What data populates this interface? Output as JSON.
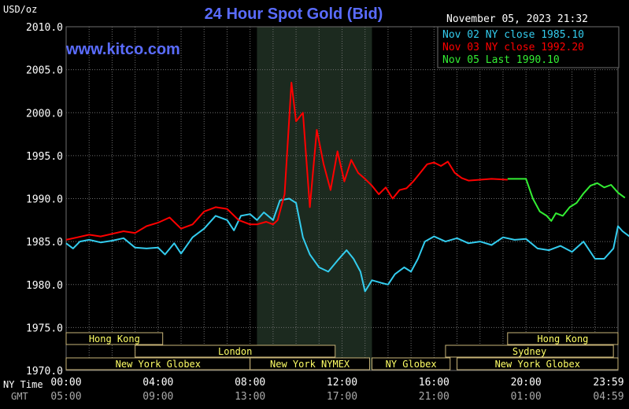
{
  "header": {
    "title": "24 Hour Spot Gold (Bid)",
    "units": "USD/oz",
    "timestamp": "November 05, 2023 21:32",
    "watermark": "www.kitco.com"
  },
  "colors": {
    "background": "#000000",
    "grid": "#6e6e6e",
    "axis_text": "#ffffff",
    "title": "#5a6cff",
    "highlight_band": "#1c2a1f",
    "nov02": "#33ccee",
    "nov03": "#ff0000",
    "nov05": "#33ee33",
    "session_text": "#ffff66",
    "session_border": "#c8b478"
  },
  "chart_data": {
    "type": "line",
    "title": "24 Hour Spot Gold (Bid)",
    "ylabel": "USD/oz",
    "ylim": [
      1970,
      2010
    ],
    "yticks": [
      "2010.0",
      "2005.0",
      "2000.0",
      "1995.0",
      "1990.0",
      "1985.0",
      "1980.0",
      "1975.0",
      "1970.0"
    ],
    "xlim_hours": [
      0,
      24
    ],
    "x_row_labels": [
      "NY Time",
      "GMT"
    ],
    "xticks_ny": [
      "00:00",
      "04:00",
      "08:00",
      "12:00",
      "16:00",
      "20:00",
      "23:59"
    ],
    "xticks_gmt": [
      "05:00",
      "09:00",
      "13:00",
      "17:00",
      "21:00",
      "01:00",
      "04:59"
    ],
    "highlight_hours": [
      8.3,
      13.3
    ],
    "grid": true,
    "legend_position": "top-right",
    "series": [
      {
        "name": "Nov 02 NY close 1985.10",
        "color_key": "nov02",
        "points": [
          [
            0,
            1984.8
          ],
          [
            0.3,
            1984.2
          ],
          [
            0.6,
            1985.0
          ],
          [
            1.0,
            1985.2
          ],
          [
            1.5,
            1984.9
          ],
          [
            2.0,
            1985.1
          ],
          [
            2.5,
            1985.4
          ],
          [
            3.0,
            1984.3
          ],
          [
            3.5,
            1984.2
          ],
          [
            4.0,
            1984.3
          ],
          [
            4.3,
            1983.5
          ],
          [
            4.7,
            1984.8
          ],
          [
            5.0,
            1983.6
          ],
          [
            5.5,
            1985.5
          ],
          [
            6.0,
            1986.5
          ],
          [
            6.5,
            1988.0
          ],
          [
            7.0,
            1987.5
          ],
          [
            7.3,
            1986.3
          ],
          [
            7.6,
            1988.0
          ],
          [
            8.0,
            1988.2
          ],
          [
            8.3,
            1987.5
          ],
          [
            8.6,
            1988.4
          ],
          [
            9.0,
            1987.5
          ],
          [
            9.3,
            1989.8
          ],
          [
            9.7,
            1990.0
          ],
          [
            10.0,
            1989.5
          ],
          [
            10.3,
            1985.5
          ],
          [
            10.6,
            1983.5
          ],
          [
            11.0,
            1982.0
          ],
          [
            11.4,
            1981.5
          ],
          [
            11.8,
            1982.8
          ],
          [
            12.2,
            1984.0
          ],
          [
            12.5,
            1983.0
          ],
          [
            12.8,
            1981.5
          ],
          [
            13.0,
            1979.2
          ],
          [
            13.3,
            1980.5
          ],
          [
            13.7,
            1980.2
          ],
          [
            14.0,
            1980.0
          ],
          [
            14.3,
            1981.2
          ],
          [
            14.7,
            1982.0
          ],
          [
            15.0,
            1981.5
          ],
          [
            15.3,
            1983.0
          ],
          [
            15.6,
            1985.0
          ],
          [
            16.0,
            1985.6
          ],
          [
            16.5,
            1985.0
          ],
          [
            17.0,
            1985.4
          ],
          [
            17.5,
            1984.8
          ],
          [
            18.0,
            1985.0
          ],
          [
            18.5,
            1984.6
          ],
          [
            19.0,
            1985.5
          ],
          [
            19.5,
            1985.2
          ],
          [
            20.0,
            1985.3
          ],
          [
            20.5,
            1984.2
          ],
          [
            21.0,
            1984.0
          ],
          [
            21.5,
            1984.5
          ],
          [
            22.0,
            1983.8
          ],
          [
            22.5,
            1985.0
          ],
          [
            23.0,
            1983.0
          ],
          [
            23.4,
            1983.0
          ],
          [
            23.8,
            1984.2
          ],
          [
            24.0,
            1986.8
          ],
          [
            24.2,
            1986.2
          ],
          [
            24.5,
            1985.6
          ]
        ]
      },
      {
        "name": "Nov 03 NY close 1992.20",
        "color_key": "nov03",
        "points": [
          [
            0,
            1985.2
          ],
          [
            0.5,
            1985.5
          ],
          [
            1.0,
            1985.8
          ],
          [
            1.5,
            1985.6
          ],
          [
            2.0,
            1985.9
          ],
          [
            2.5,
            1986.2
          ],
          [
            3.0,
            1986.0
          ],
          [
            3.5,
            1986.8
          ],
          [
            4.0,
            1987.2
          ],
          [
            4.5,
            1987.8
          ],
          [
            5.0,
            1986.5
          ],
          [
            5.5,
            1987.0
          ],
          [
            6.0,
            1988.5
          ],
          [
            6.5,
            1989.0
          ],
          [
            7.0,
            1988.8
          ],
          [
            7.5,
            1987.5
          ],
          [
            8.0,
            1987.0
          ],
          [
            8.3,
            1987.0
          ],
          [
            8.7,
            1987.3
          ],
          [
            9.0,
            1987.0
          ],
          [
            9.2,
            1987.5
          ],
          [
            9.5,
            1990.5
          ],
          [
            9.8,
            2003.5
          ],
          [
            10.0,
            1999.0
          ],
          [
            10.3,
            2000.0
          ],
          [
            10.6,
            1989.0
          ],
          [
            10.9,
            1998.0
          ],
          [
            11.2,
            1994.0
          ],
          [
            11.5,
            1991.0
          ],
          [
            11.8,
            1995.5
          ],
          [
            12.1,
            1992.0
          ],
          [
            12.4,
            1994.5
          ],
          [
            12.7,
            1993.0
          ],
          [
            13.0,
            1992.3
          ],
          [
            13.3,
            1991.5
          ],
          [
            13.6,
            1990.5
          ],
          [
            13.9,
            1991.3
          ],
          [
            14.2,
            1990.0
          ],
          [
            14.5,
            1991.0
          ],
          [
            14.8,
            1991.2
          ],
          [
            15.1,
            1992.0
          ],
          [
            15.4,
            1993.0
          ],
          [
            15.7,
            1994.0
          ],
          [
            16.0,
            1994.2
          ],
          [
            16.3,
            1993.8
          ],
          [
            16.6,
            1994.3
          ],
          [
            16.9,
            1993.0
          ],
          [
            17.2,
            1992.4
          ],
          [
            17.5,
            1992.1
          ],
          [
            18.0,
            1992.2
          ],
          [
            18.5,
            1992.3
          ],
          [
            19.2,
            1992.2
          ]
        ]
      },
      {
        "name": "Nov 05 Last 1990.10",
        "color_key": "nov05",
        "points": [
          [
            19.2,
            1992.3
          ],
          [
            19.6,
            1992.3
          ],
          [
            20.0,
            1992.3
          ],
          [
            20.3,
            1990.0
          ],
          [
            20.6,
            1988.5
          ],
          [
            20.9,
            1988.0
          ],
          [
            21.1,
            1987.4
          ],
          [
            21.3,
            1988.3
          ],
          [
            21.6,
            1988.0
          ],
          [
            21.9,
            1989.0
          ],
          [
            22.2,
            1989.5
          ],
          [
            22.5,
            1990.6
          ],
          [
            22.8,
            1991.5
          ],
          [
            23.1,
            1991.8
          ],
          [
            23.4,
            1991.3
          ],
          [
            23.7,
            1991.6
          ],
          [
            24.0,
            1990.7
          ],
          [
            24.3,
            1990.1
          ]
        ]
      }
    ],
    "sessions": [
      {
        "label": "Hong Kong",
        "row": 0,
        "start": 0,
        "end": 4.2
      },
      {
        "label": "London",
        "row": 1,
        "start": 3.0,
        "end": 11.7
      },
      {
        "label": "New York Globex",
        "row": 2,
        "start": 0,
        "end": 8.0
      },
      {
        "label": "New York NYMEX",
        "row": 2,
        "start": 8.0,
        "end": 13.2
      },
      {
        "label": "NY Globex",
        "row": 2,
        "start": 13.3,
        "end": 16.7
      },
      {
        "label": "Hong Kong",
        "row": 0,
        "start": 19.2,
        "end": 24.0
      },
      {
        "label": "Sydney",
        "row": 1,
        "start": 16.5,
        "end": 23.8
      },
      {
        "label": "New York Globex",
        "row": 2,
        "start": 17.0,
        "end": 24.0
      }
    ]
  }
}
